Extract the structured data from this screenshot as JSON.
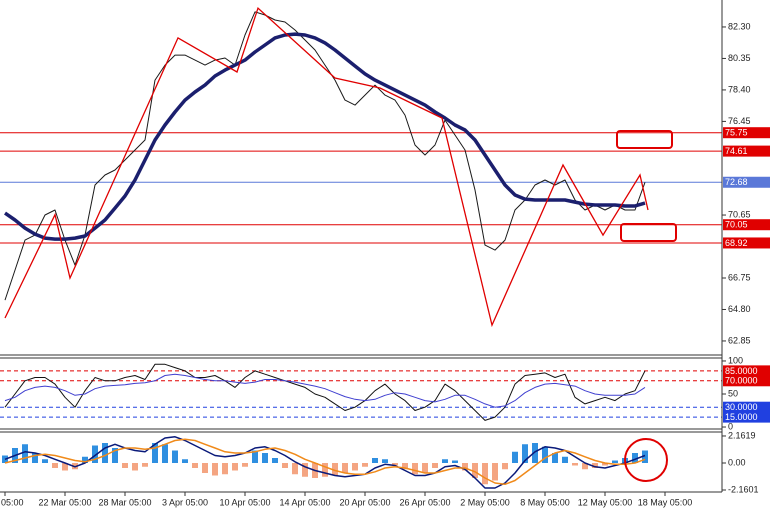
{
  "chart_data": [
    {
      "type": "line",
      "ylim": [
        61.98,
        83.97
      ],
      "yticks": [
        {
          "value": 82.3,
          "label": "82.30"
        },
        80.35,
        {
          "value": 78.4,
          "label": "78.40"
        },
        76.45,
        70.65,
        66.75,
        {
          "value": 64.8,
          "label": "64.80"
        },
        62.85
      ],
      "grid": false,
      "series": [
        {
          "color": "#1a1a1a",
          "width": 1,
          "values": [
            65.38,
            67.24,
            69.1,
            69.41,
            70.65,
            70.96,
            69.1,
            67.55,
            69.41,
            72.51,
            73.13,
            73.44,
            74.06,
            74.68,
            75.3,
            79.01,
            79.94,
            80.56,
            80.56,
            80.25,
            79.94,
            80.25,
            80.38,
            79.94,
            81.8,
            83.23,
            83.04,
            82.73,
            82.61,
            82.11,
            81.49,
            80.87,
            79.94,
            79.01,
            77.77,
            77.46,
            78.08,
            78.7,
            78.08,
            77.77,
            76.84,
            74.99,
            74.37,
            74.99,
            76.53,
            75.61,
            74.68,
            72.2,
            68.79,
            68.48,
            69.1,
            70.96,
            71.58,
            72.51,
            72.82,
            72.51,
            72.82,
            71.58,
            70.96,
            71.27,
            70.96,
            71.27,
            70.96,
            70.96,
            72.68,
            null,
            null
          ]
        },
        {
          "color": "#1b1f6e",
          "width": 3.5,
          "values": [
            70.77,
            70.34,
            69.84,
            69.47,
            69.22,
            69.16,
            69.16,
            69.22,
            69.35,
            69.84,
            70.34,
            71.08,
            71.83,
            72.82,
            74.06,
            75.3,
            76.23,
            77.03,
            77.77,
            78.27,
            78.7,
            79.26,
            79.63,
            79.94,
            80.25,
            80.75,
            81.18,
            81.62,
            81.8,
            81.86,
            81.8,
            81.62,
            81.31,
            80.87,
            80.38,
            79.88,
            79.39,
            79.01,
            78.7,
            78.39,
            78.08,
            77.77,
            77.46,
            77.03,
            76.66,
            76.23,
            75.92,
            75.3,
            74.37,
            73.44,
            72.51,
            71.89,
            71.64,
            71.58,
            71.58,
            71.58,
            71.58,
            71.45,
            71.33,
            71.27,
            71.27,
            71.27,
            71.21,
            71.21,
            71.39,
            null,
            null
          ]
        }
      ],
      "zigzag": {
        "color": "#e00000",
        "x": [
          0,
          5,
          6.5,
          17.3,
          23.2,
          25.3,
          33,
          37.5,
          43.7,
          48.7,
          55.8,
          59.8,
          63.5,
          64.3
        ],
        "values": [
          64.27,
          70.67,
          66.75,
          81.62,
          79.51,
          83.47,
          79.14,
          78.52,
          76.66,
          63.83,
          73.75,
          69.41,
          73.13,
          70.96
        ]
      },
      "levels": [
        {
          "value": 75.75,
          "color": "#e00000"
        },
        {
          "value": 74.61,
          "color": "#e00000"
        },
        {
          "value": 72.68,
          "color": "#5a78d8"
        },
        {
          "value": 70.05,
          "color": "#e00000"
        },
        {
          "value": 68.92,
          "color": "#e00000"
        }
      ]
    },
    {
      "type": "line",
      "ylim": [
        -3,
        104.5
      ],
      "yticks": [
        100,
        50,
        0
      ],
      "series": [
        {
          "color": "#111111",
          "width": 1,
          "values": [
            30,
            50,
            70,
            75,
            75,
            65,
            45,
            30,
            55,
            75,
            70,
            70,
            75,
            78,
            72,
            95,
            95,
            90,
            85,
            75,
            75,
            78,
            70,
            60,
            75,
            85,
            80,
            75,
            70,
            65,
            60,
            50,
            45,
            35,
            25,
            30,
            40,
            55,
            65,
            50,
            40,
            25,
            30,
            40,
            65,
            55,
            40,
            25,
            10,
            15,
            30,
            65,
            78,
            80,
            82,
            75,
            80,
            45,
            35,
            40,
            45,
            40,
            50,
            55,
            85,
            null,
            null
          ]
        },
        {
          "color": "#4040d0",
          "width": 1,
          "values": [
            40,
            45,
            55,
            60,
            62,
            60,
            55,
            48,
            50,
            58,
            62,
            63,
            64,
            66,
            67,
            70,
            78,
            80,
            78,
            75,
            72,
            70,
            70,
            68,
            66,
            68,
            72,
            72,
            70,
            68,
            65,
            62,
            58,
            52,
            46,
            42,
            40,
            42,
            48,
            52,
            50,
            45,
            40,
            38,
            42,
            48,
            48,
            42,
            35,
            30,
            32,
            40,
            52,
            60,
            65,
            66,
            64,
            62,
            55,
            50,
            48,
            48,
            48,
            50,
            60,
            null,
            null
          ]
        }
      ],
      "levels": [
        {
          "value": 85,
          "label": "85.0000",
          "color": "#e00000"
        },
        {
          "value": 70,
          "label": "70.0000",
          "color": "#e00000"
        },
        {
          "value": 30,
          "label": "30.0000",
          "color": "#2040e0"
        },
        {
          "value": 15,
          "label": "15.0000",
          "color": "#2040e0"
        }
      ]
    },
    {
      "type": "bar",
      "ylim": [
        -2.32,
        2.48
      ],
      "yticks": [
        2.1619,
        {
          "value": 0,
          "label": "0.00"
        },
        -2.1601
      ],
      "categories": [
        "05:00",
        null,
        null,
        null,
        null,
        null,
        "22 Mar 05:00",
        null,
        null,
        null,
        null,
        null,
        "28 Mar 05:00",
        null,
        null,
        null,
        null,
        null,
        "3 Apr 05:00",
        null,
        null,
        null,
        null,
        null,
        "10 Apr 05:00",
        null,
        null,
        null,
        null,
        null,
        "14 Apr 05:00",
        null,
        null,
        null,
        null,
        null,
        "20 Apr 05:00",
        null,
        null,
        null,
        null,
        null,
        "26 Apr 05:00",
        null,
        null,
        null,
        null,
        null,
        "2 May 05:00",
        null,
        null,
        null,
        null,
        null,
        "8 May 05:00",
        null,
        null,
        null,
        null,
        null,
        "12 May 05:00",
        null,
        null,
        null,
        null,
        null,
        "18 May 05:00"
      ],
      "color": "#2f8fe0",
      "negative_color": "#f4a582",
      "values": [
        0.6,
        1.2,
        1.5,
        0.8,
        0.3,
        -0.4,
        -0.6,
        -0.5,
        0.5,
        1.4,
        1.6,
        1.2,
        -0.4,
        -0.6,
        -0.3,
        1.6,
        1.5,
        1.0,
        0.3,
        -0.4,
        -0.8,
        -1.0,
        -0.9,
        -0.6,
        -0.3,
        1.0,
        0.8,
        0.4,
        -0.4,
        -0.9,
        -1.1,
        -1.2,
        -1.1,
        -1.0,
        -0.8,
        -0.6,
        -0.3,
        0.4,
        0.3,
        -0.2,
        -0.5,
        -0.9,
        -0.8,
        -0.4,
        0.3,
        0.2,
        -0.6,
        -1.2,
        -1.7,
        -1.4,
        -0.5,
        0.9,
        1.5,
        1.6,
        1.3,
        0.8,
        0.5,
        -0.2,
        -0.5,
        -0.4,
        -0.2,
        0.2,
        0.4,
        0.8,
        1.0,
        null,
        null
      ],
      "series": [
        {
          "color": "#0a1a7a",
          "width": 1.5,
          "values": [
            0.3,
            0.6,
            0.9,
            0.8,
            0.6,
            0.3,
            0.0,
            -0.3,
            0.0,
            0.6,
            1.2,
            1.5,
            1.2,
            1.0,
            0.9,
            1.5,
            2.0,
            2.1,
            1.8,
            1.4,
            1.0,
            0.6,
            0.5,
            0.6,
            0.8,
            1.2,
            1.3,
            1.0,
            0.6,
            0.1,
            -0.3,
            -0.6,
            -0.8,
            -1.0,
            -1.1,
            -1.0,
            -0.9,
            -0.4,
            -0.1,
            -0.2,
            -0.6,
            -1.0,
            -1.0,
            -0.8,
            -0.3,
            -0.2,
            -0.5,
            -1.2,
            -2.0,
            -2.0,
            -1.6,
            -0.8,
            0.2,
            0.9,
            1.3,
            1.2,
            1.0,
            0.5,
            0.0,
            -0.3,
            -0.4,
            -0.2,
            0.0,
            0.3,
            0.6,
            null,
            null
          ]
        },
        {
          "color": "#f08a1a",
          "width": 1.5,
          "values": [
            0.0,
            0.2,
            0.4,
            0.6,
            0.7,
            0.6,
            0.4,
            0.2,
            0.1,
            0.3,
            0.6,
            1.0,
            1.2,
            1.2,
            1.1,
            1.2,
            1.5,
            1.8,
            1.9,
            1.8,
            1.5,
            1.2,
            0.9,
            0.8,
            0.8,
            0.9,
            1.1,
            1.2,
            1.0,
            0.7,
            0.3,
            0.0,
            -0.3,
            -0.6,
            -0.8,
            -0.9,
            -0.9,
            -0.7,
            -0.4,
            -0.3,
            -0.4,
            -0.6,
            -0.8,
            -0.8,
            -0.6,
            -0.4,
            -0.4,
            -0.7,
            -1.2,
            -1.6,
            -1.7,
            -1.4,
            -0.8,
            -0.2,
            0.4,
            0.8,
            1.0,
            0.8,
            0.5,
            0.2,
            0.0,
            -0.1,
            -0.1,
            0.0,
            0.3,
            null,
            null
          ]
        }
      ]
    }
  ]
}
